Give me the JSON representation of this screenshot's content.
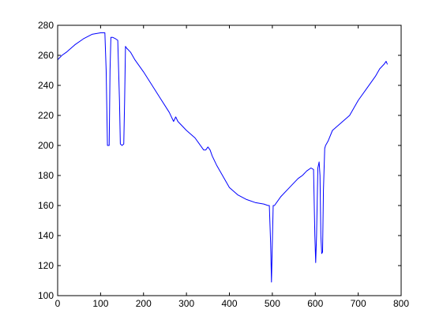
{
  "chart_data": {
    "type": "line",
    "xlim": [
      0,
      800
    ],
    "ylim": [
      100,
      280
    ],
    "xticks": [
      0,
      100,
      200,
      300,
      400,
      500,
      600,
      700,
      800
    ],
    "yticks": [
      100,
      120,
      140,
      160,
      180,
      200,
      220,
      240,
      260,
      280
    ],
    "grid": false,
    "line_color": "#0000ff",
    "series": [
      {
        "x": [
          0,
          10,
          20,
          40,
          60,
          80,
          100,
          110,
          113,
          116,
          120,
          122,
          124,
          128,
          135,
          140,
          144,
          146,
          150,
          154,
          156,
          158,
          160,
          170,
          180,
          200,
          220,
          240,
          260,
          270,
          275,
          280,
          300,
          320,
          330,
          340,
          345,
          350,
          355,
          360,
          370,
          380,
          400,
          420,
          440,
          460,
          480,
          490,
          493,
          496,
          498,
          500,
          502,
          505,
          510,
          520,
          540,
          560,
          570,
          580,
          590,
          596,
          599,
          601,
          603,
          606,
          609,
          611,
          613,
          615,
          617,
          619,
          622,
          624,
          626,
          630,
          640,
          660,
          680,
          700,
          720,
          740,
          750,
          760,
          765,
          768
        ],
        "y": [
          257,
          260,
          262,
          267,
          271,
          274,
          275,
          275,
          250,
          200,
          200,
          250,
          272,
          272,
          271,
          270,
          230,
          201,
          200,
          201,
          230,
          266,
          265,
          262,
          257,
          249,
          240,
          231,
          222,
          216,
          219,
          216,
          210,
          205,
          201,
          197,
          197,
          199,
          197,
          193,
          187,
          182,
          172,
          167,
          164,
          162,
          161,
          160,
          160,
          135,
          109,
          135,
          160,
          160,
          162,
          166,
          172,
          178,
          180,
          183,
          185,
          184,
          140,
          122,
          140,
          185,
          189,
          180,
          140,
          128,
          129,
          170,
          198,
          200,
          201,
          203,
          210,
          215,
          220,
          230,
          238,
          246,
          251,
          254,
          256,
          254
        ]
      }
    ]
  }
}
